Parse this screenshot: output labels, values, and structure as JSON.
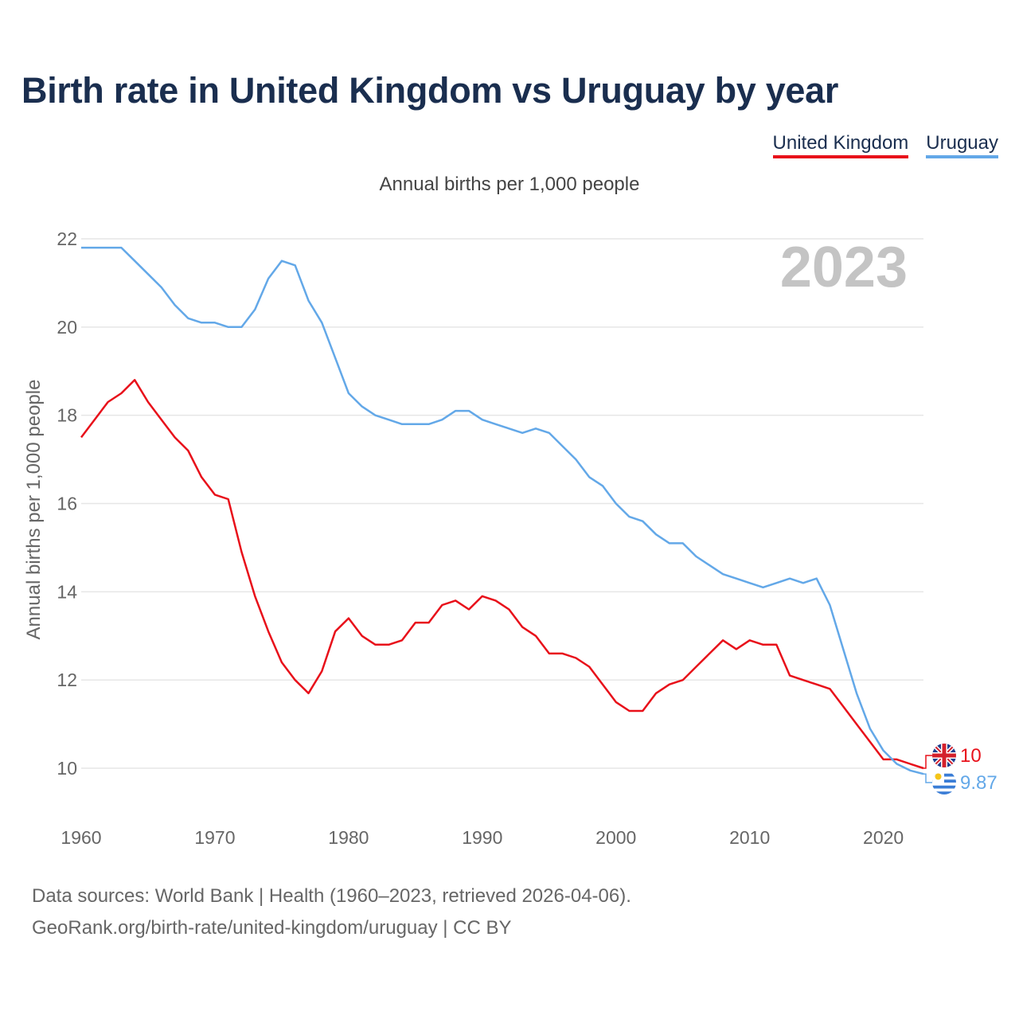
{
  "title": "Birth rate in United Kingdom vs Uruguay by year",
  "legend": {
    "uk_label": "United Kingdom",
    "uy_label": "Uruguay"
  },
  "colors": {
    "uk": "#e8101a",
    "uy": "#63a8e8",
    "grid": "#e6e6e6",
    "text": "#1a2e4f"
  },
  "chart_data": {
    "type": "line",
    "title": "Birth rate in United Kingdom vs Uruguay by year",
    "subtitle": "Annual births per 1,000 people",
    "xlabel": "",
    "ylabel": "Annual births per 1,000 people",
    "year_watermark": "2023",
    "xlim": [
      1960,
      2023
    ],
    "ylim": [
      9.2,
      22
    ],
    "x_ticks": [
      1960,
      1970,
      1980,
      1990,
      2000,
      2010,
      2020
    ],
    "y_ticks": [
      10,
      12,
      14,
      16,
      18,
      20,
      22
    ],
    "grid": true,
    "legend_position": "top-right",
    "x": [
      1960,
      1961,
      1962,
      1963,
      1964,
      1965,
      1966,
      1967,
      1968,
      1969,
      1970,
      1971,
      1972,
      1973,
      1974,
      1975,
      1976,
      1977,
      1978,
      1979,
      1980,
      1981,
      1982,
      1983,
      1984,
      1985,
      1986,
      1987,
      1988,
      1989,
      1990,
      1991,
      1992,
      1993,
      1994,
      1995,
      1996,
      1997,
      1998,
      1999,
      2000,
      2001,
      2002,
      2003,
      2004,
      2005,
      2006,
      2007,
      2008,
      2009,
      2010,
      2011,
      2012,
      2013,
      2014,
      2015,
      2016,
      2017,
      2018,
      2019,
      2020,
      2021,
      2022,
      2023
    ],
    "series": [
      {
        "name": "United Kingdom",
        "color": "#e8101a",
        "end_label": "10",
        "values": [
          17.5,
          17.9,
          18.3,
          18.5,
          18.8,
          18.3,
          17.9,
          17.5,
          17.2,
          16.6,
          16.2,
          16.1,
          14.9,
          13.9,
          13.1,
          12.4,
          12.0,
          11.7,
          12.2,
          13.1,
          13.4,
          13.0,
          12.8,
          12.8,
          12.9,
          13.3,
          13.3,
          13.7,
          13.8,
          13.6,
          13.9,
          13.8,
          13.6,
          13.2,
          13.0,
          12.6,
          12.6,
          12.5,
          12.3,
          11.9,
          11.5,
          11.3,
          11.3,
          11.7,
          11.9,
          12.0,
          12.3,
          12.6,
          12.9,
          12.7,
          12.9,
          12.8,
          12.8,
          12.1,
          12.0,
          11.9,
          11.8,
          11.4,
          11.0,
          10.6,
          10.2,
          10.2,
          10.1,
          10.0
        ]
      },
      {
        "name": "Uruguay",
        "color": "#63a8e8",
        "end_label": "9.87",
        "values": [
          21.8,
          21.8,
          21.8,
          21.8,
          21.5,
          21.2,
          20.9,
          20.5,
          20.2,
          20.1,
          20.1,
          20.0,
          20.0,
          20.4,
          21.1,
          21.5,
          21.4,
          20.6,
          20.1,
          19.3,
          18.5,
          18.2,
          18.0,
          17.9,
          17.8,
          17.8,
          17.8,
          17.9,
          18.1,
          18.1,
          17.9,
          17.8,
          17.7,
          17.6,
          17.7,
          17.6,
          17.3,
          17.0,
          16.6,
          16.4,
          16.0,
          15.7,
          15.6,
          15.3,
          15.1,
          15.1,
          14.8,
          14.6,
          14.4,
          14.3,
          14.2,
          14.1,
          14.2,
          14.3,
          14.2,
          14.3,
          13.7,
          12.7,
          11.7,
          10.9,
          10.4,
          10.1,
          9.95,
          9.87
        ]
      }
    ]
  },
  "footer": {
    "line1": "Data sources: World Bank | Health (1960–2023, retrieved 2026-04-06).",
    "line2": "GeoRank.org/birth-rate/united-kingdom/uruguay | CC BY"
  }
}
